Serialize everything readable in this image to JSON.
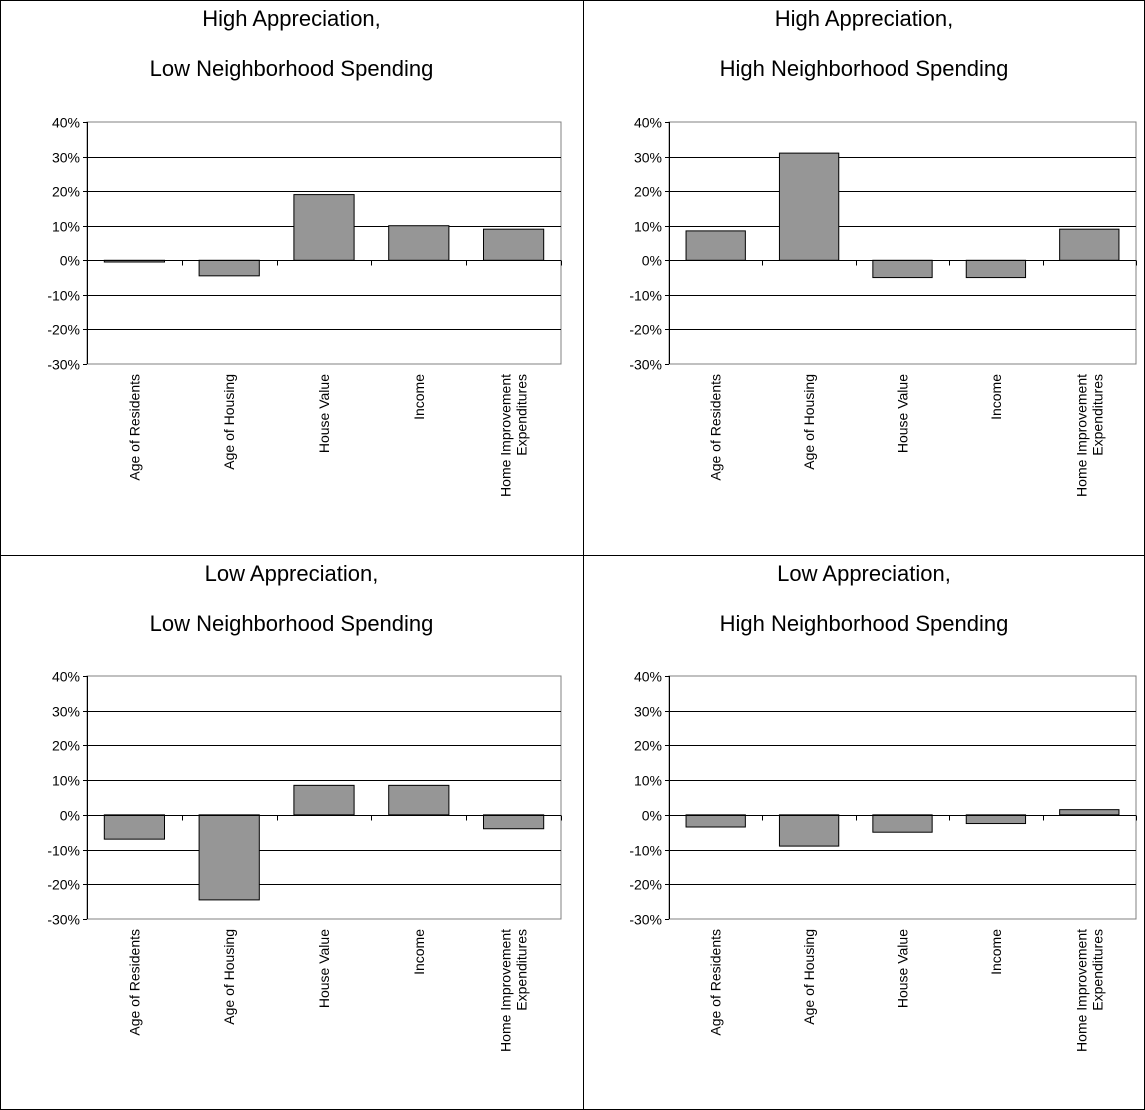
{
  "chart_data": [
    {
      "type": "bar",
      "title_line1": "High Appreciation,",
      "title_line2": "Low Neighborhood Spending",
      "categories": [
        "Age of Residents",
        "Age of Housing",
        "House Value",
        "Income",
        "Home Improvement\nExpenditures"
      ],
      "values": [
        -0.5,
        -4.5,
        19,
        10,
        9
      ],
      "ylim": [
        -30,
        40
      ],
      "yticks": [
        "40%",
        "30%",
        "20%",
        "10%",
        "0%",
        "-10%",
        "-20%",
        "-30%"
      ],
      "grid": true,
      "bar_color": "#969696"
    },
    {
      "type": "bar",
      "title_line1": "High Appreciation,",
      "title_line2": "High Neighborhood Spending",
      "categories": [
        "Age of Residents",
        "Age of Housing",
        "House Value",
        "Income",
        "Home Improvement\nExpenditures"
      ],
      "values": [
        8.5,
        31,
        -5,
        -5,
        9
      ],
      "ylim": [
        -30,
        40
      ],
      "yticks": [
        "40%",
        "30%",
        "20%",
        "10%",
        "0%",
        "-10%",
        "-20%",
        "-30%"
      ],
      "grid": true,
      "bar_color": "#969696"
    },
    {
      "type": "bar",
      "title_line1": "Low Appreciation,",
      "title_line2": "Low Neighborhood Spending",
      "categories": [
        "Age of Residents",
        "Age of Housing",
        "House Value",
        "Income",
        "Home Improvement\nExpenditures"
      ],
      "values": [
        -7,
        -24.5,
        8.5,
        8.5,
        -4
      ],
      "ylim": [
        -30,
        40
      ],
      "yticks": [
        "40%",
        "30%",
        "20%",
        "10%",
        "0%",
        "-10%",
        "-20%",
        "-30%"
      ],
      "grid": true,
      "bar_color": "#969696"
    },
    {
      "type": "bar",
      "title_line1": "Low Appreciation,",
      "title_line2": "High Neighborhood Spending",
      "categories": [
        "Age of Residents",
        "Age of Housing",
        "House Value",
        "Income",
        "Home Improvement\nExpenditures"
      ],
      "values": [
        -3.5,
        -9,
        -5,
        -2.5,
        1.5
      ],
      "ylim": [
        -30,
        40
      ],
      "yticks": [
        "40%",
        "30%",
        "20%",
        "10%",
        "0%",
        "-10%",
        "-20%",
        "-30%"
      ],
      "grid": true,
      "bar_color": "#969696"
    }
  ]
}
